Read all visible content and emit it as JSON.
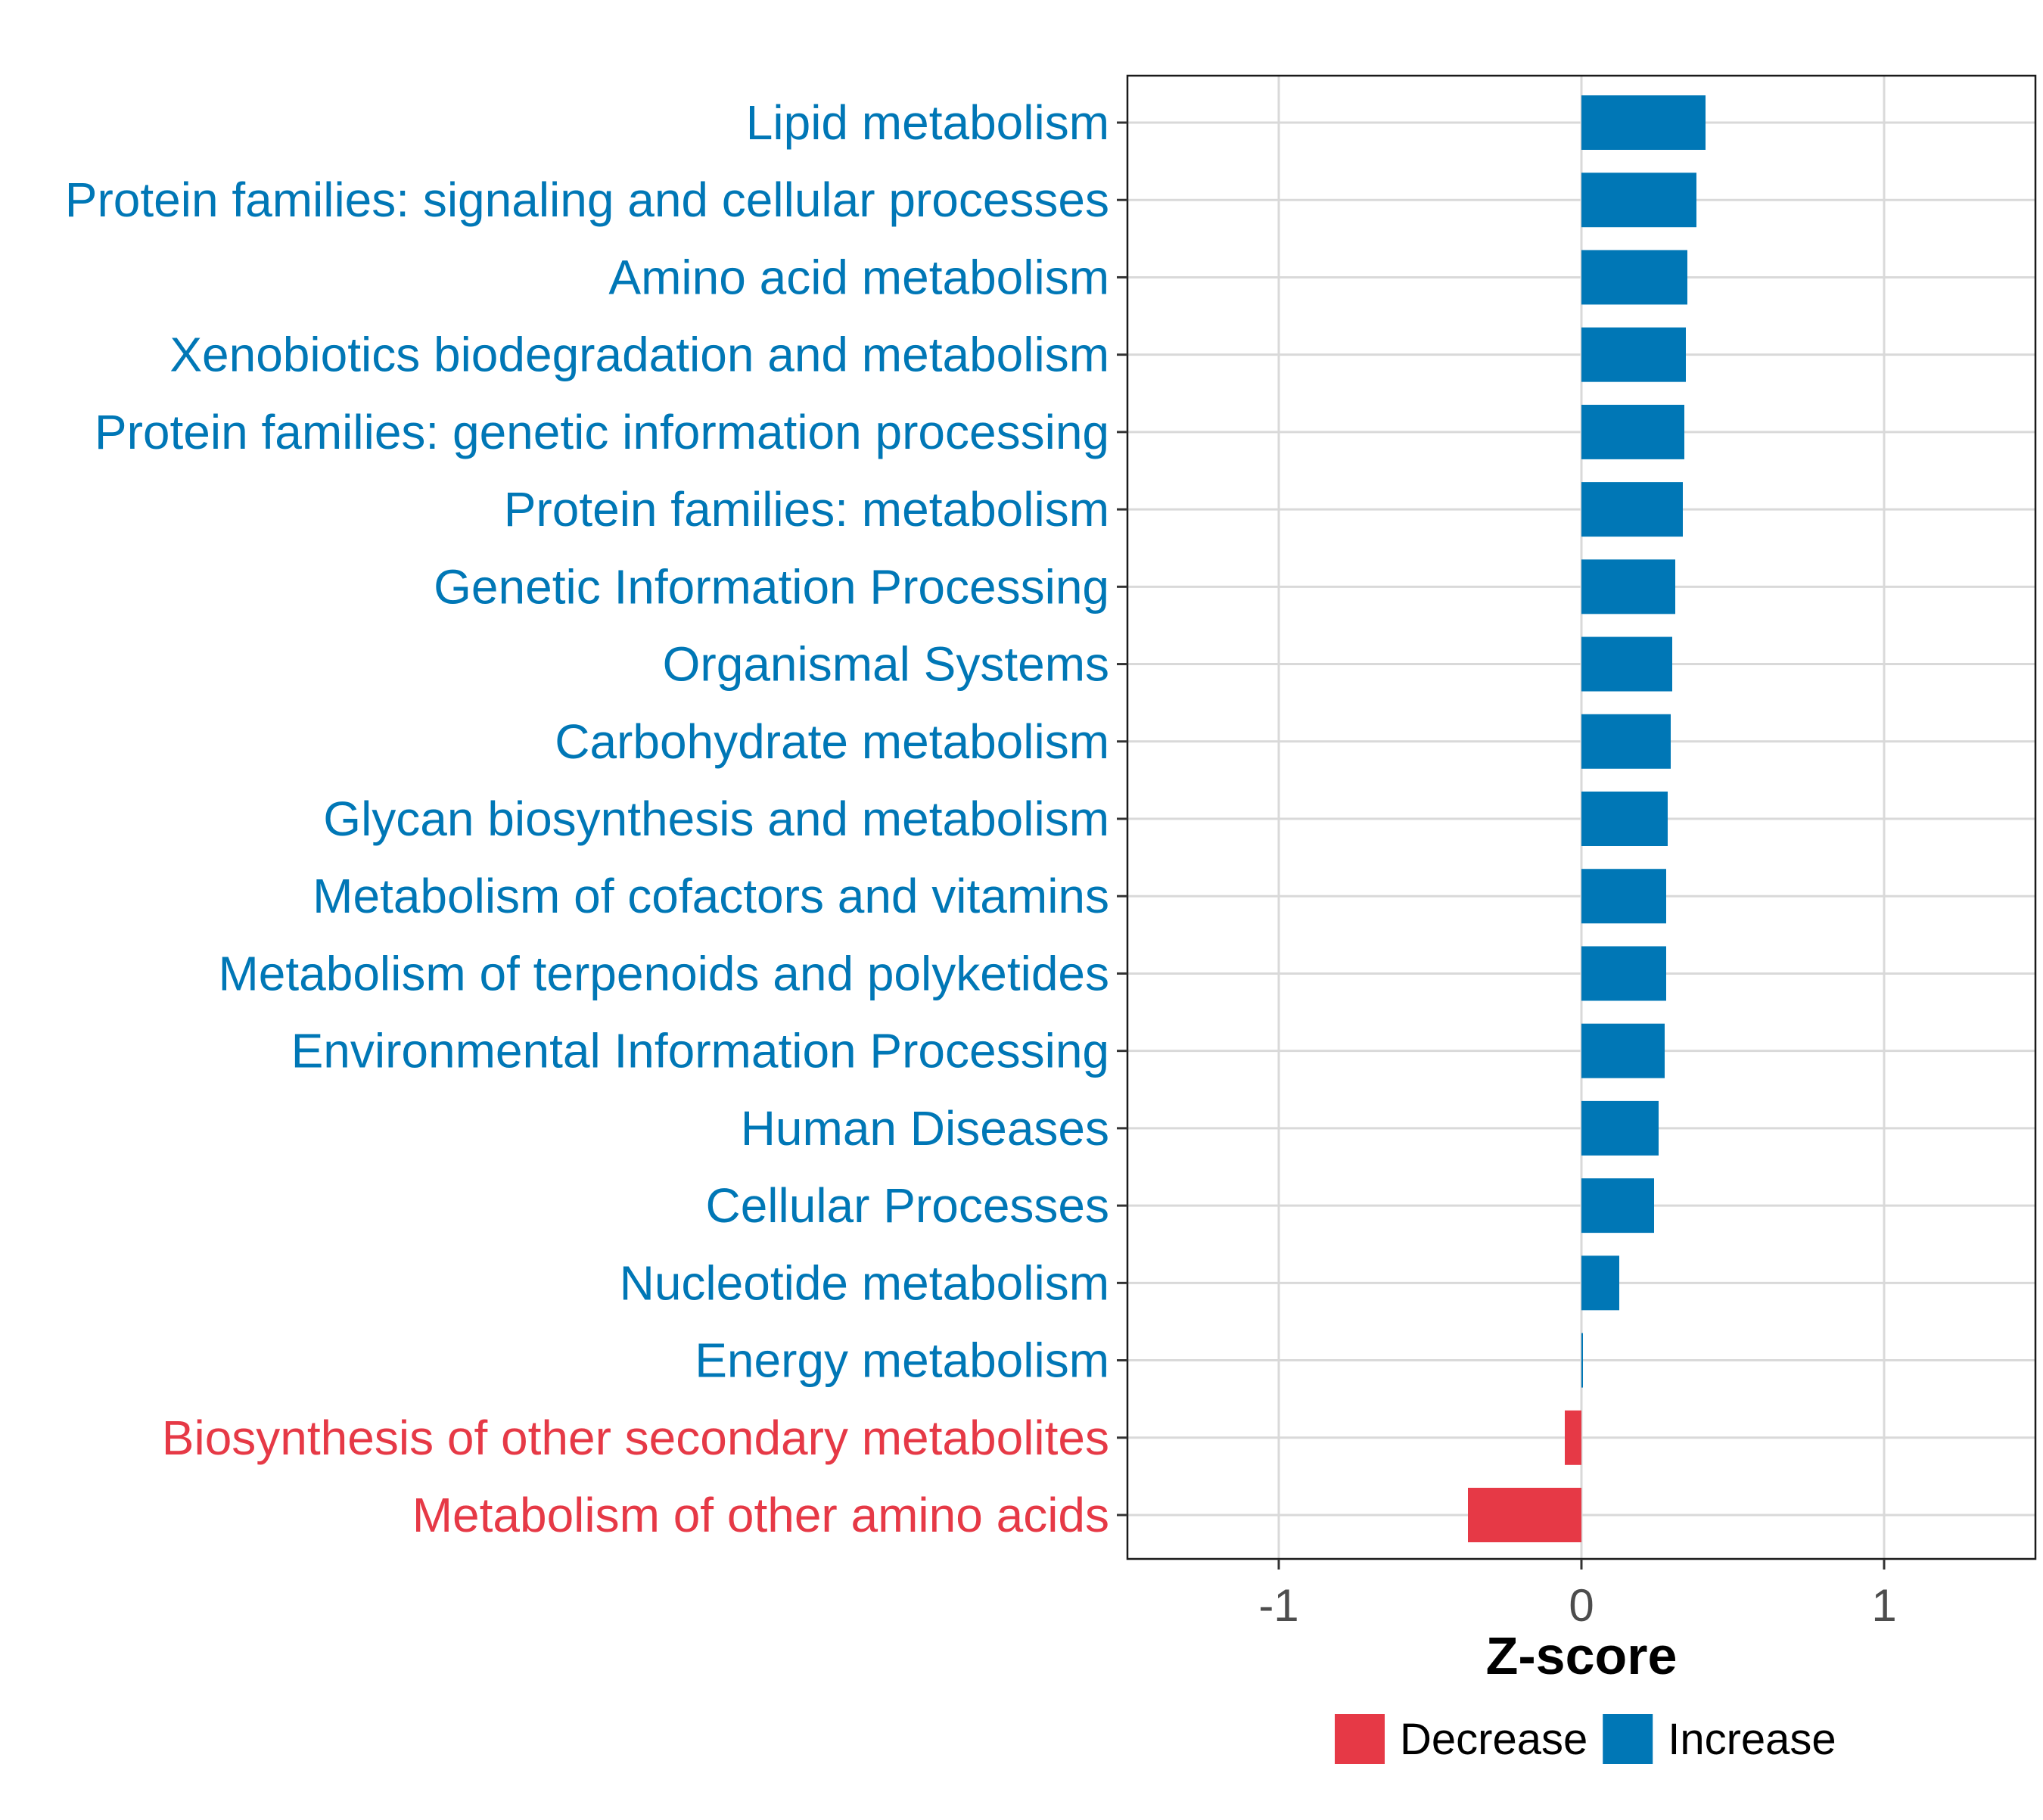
{
  "chart_data": {
    "type": "bar",
    "orientation": "horizontal",
    "xlabel": "Z-score",
    "ylabel": "",
    "xlim": [
      -1.5,
      1.5
    ],
    "xticks": [
      -1,
      0,
      1
    ],
    "xtick_labels": [
      "-1",
      "0",
      "1"
    ],
    "grid": true,
    "categories": [
      "Lipid metabolism",
      "Protein families: signaling and cellular processes",
      "Amino acid metabolism",
      "Xenobiotics biodegradation and metabolism",
      "Protein families: genetic information processing",
      "Protein families: metabolism",
      "Genetic Information Processing",
      "Organismal Systems",
      "Carbohydrate metabolism",
      "Glycan biosynthesis and metabolism",
      "Metabolism of cofactors and vitamins",
      "Metabolism of terpenoids and polyketides",
      "Environmental Information Processing",
      "Human Diseases",
      "Cellular Processes",
      "Nucleotide metabolism",
      "Energy metabolism",
      "Biosynthesis of other secondary metabolites",
      "Metabolism of other amino acids"
    ],
    "values": [
      0.41,
      0.38,
      0.35,
      0.345,
      0.34,
      0.335,
      0.31,
      0.3,
      0.295,
      0.285,
      0.28,
      0.28,
      0.275,
      0.255,
      0.24,
      0.125,
      0.005,
      -0.055,
      -0.375
    ],
    "groups": [
      "Increase",
      "Increase",
      "Increase",
      "Increase",
      "Increase",
      "Increase",
      "Increase",
      "Increase",
      "Increase",
      "Increase",
      "Increase",
      "Increase",
      "Increase",
      "Increase",
      "Increase",
      "Increase",
      "Increase",
      "Decrease",
      "Decrease"
    ],
    "legend": {
      "position": "bottom",
      "entries": [
        {
          "label": "Decrease",
          "color": "#e63946"
        },
        {
          "label": "Increase",
          "color": "#0077b6"
        }
      ]
    },
    "colors": {
      "Decrease": "#e63946",
      "Increase": "#0077b6"
    }
  }
}
